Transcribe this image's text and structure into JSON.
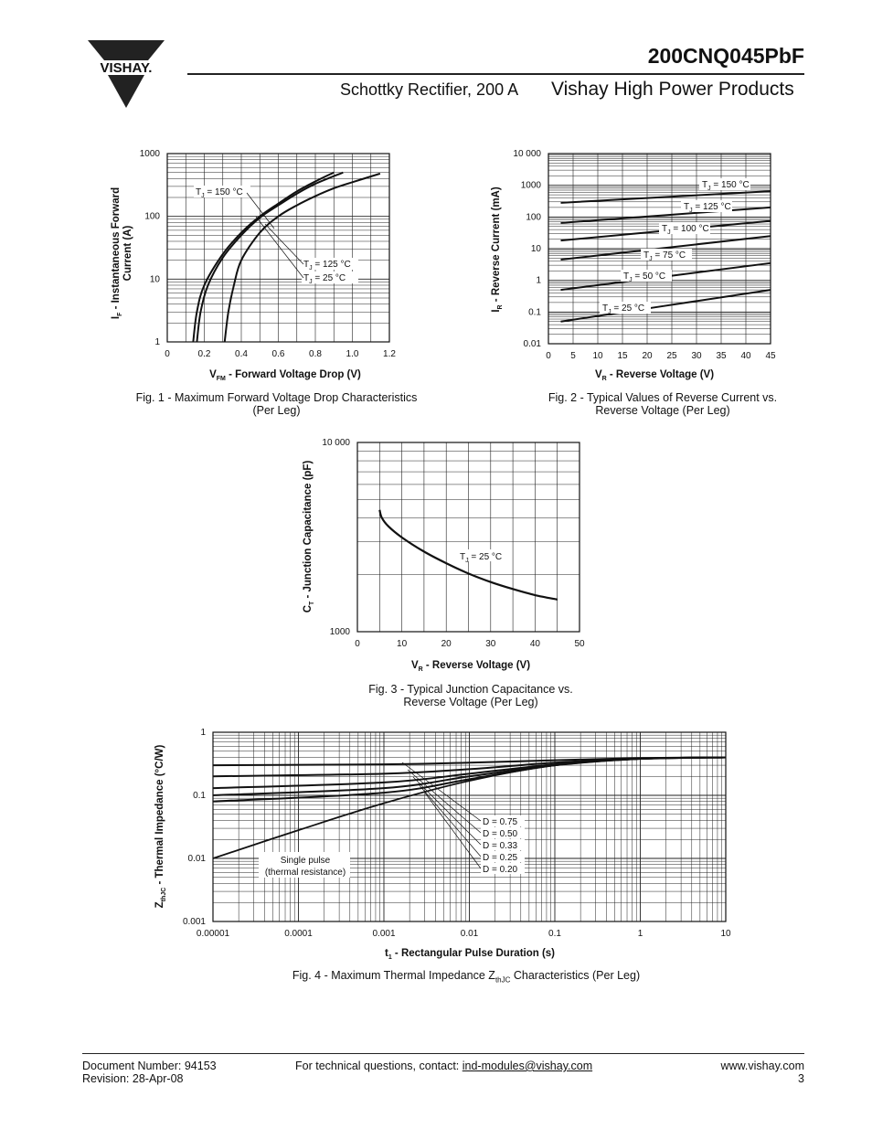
{
  "header": {
    "brand": "VISHAY.",
    "part_number": "200CNQ045PbF",
    "subtitle": "Schottky Rectifier, 200 A",
    "division": "Vishay High Power Products"
  },
  "figures": [
    {
      "caption_line1": "Fig. 1 - Maximum Forward Voltage Drop Characteristics",
      "caption_line2": "(Per Leg)"
    },
    {
      "caption_line1": "Fig. 2 - Typical Values of Reverse Current vs.",
      "caption_line2": "Reverse Voltage (Per Leg)"
    },
    {
      "caption_line1": "Fig. 3 - Typical Junction Capacitance vs.",
      "caption_line2": "Reverse Voltage (Per Leg)"
    },
    {
      "caption_prefix": "Fig. 4 - Maximum Thermal Impedance Z",
      "caption_sub": "thJC",
      "caption_suffix": " Characteristics (Per Leg)"
    }
  ],
  "footer": {
    "doc_number": "Document Number: 94153",
    "revision": "Revision: 28-Apr-08",
    "contact_prefix": "For technical questions, contact: ",
    "contact_email": "ind-modules@vishay.com",
    "website": "www.vishay.com",
    "page": "3"
  },
  "chart_data": [
    {
      "type": "line",
      "xlabel_main": "V",
      "xlabel_sub": "FM",
      "xlabel_rest": " - Forward Voltage Drop (V)",
      "ylabel_main": "I",
      "ylabel_sub": "F",
      "ylabel_rest": " - Instantaneous Forward",
      "ylabel_line2": "Current (A)",
      "x_ticks": [
        "0",
        "0.2",
        "0.4",
        "0.6",
        "0.8",
        "1.0",
        "1.2"
      ],
      "y_ticks": [
        "1",
        "10",
        "100",
        "1000"
      ],
      "xlim": [
        0,
        1.2
      ],
      "ylim": [
        1,
        1000
      ],
      "yscale": "log",
      "grid": true,
      "series": [
        {
          "name": "TJ = 150 °C",
          "label_main": "T",
          "label_sub": "J",
          "label_rest": " = 150 °C",
          "x": [
            0.14,
            0.16,
            0.2,
            0.3,
            0.4,
            0.5,
            0.6,
            0.7,
            0.8,
            0.9
          ],
          "y": [
            1,
            3,
            8,
            25,
            55,
            100,
            160,
            250,
            360,
            500
          ]
        },
        {
          "name": "TJ = 125 °C",
          "label_main": "T",
          "label_sub": "J",
          "label_rest": " = 125 °C",
          "x": [
            0.16,
            0.18,
            0.22,
            0.3,
            0.4,
            0.5,
            0.6,
            0.7,
            0.8,
            0.95
          ],
          "y": [
            1,
            3,
            8,
            22,
            50,
            95,
            150,
            230,
            330,
            500
          ]
        },
        {
          "name": "TJ = 25 °C",
          "label_main": "T",
          "label_sub": "J",
          "label_rest": " =   25 °C",
          "x": [
            0.31,
            0.33,
            0.36,
            0.4,
            0.5,
            0.6,
            0.7,
            0.8,
            0.9,
            1.0,
            1.15
          ],
          "y": [
            1,
            3,
            8,
            20,
            55,
            100,
            150,
            210,
            280,
            350,
            480
          ]
        }
      ]
    },
    {
      "type": "line",
      "xlabel_main": "V",
      "xlabel_sub": "R",
      "xlabel_rest": " - Reverse Voltage (V)",
      "ylabel_main": "I",
      "ylabel_sub": "R",
      "ylabel_rest": " - Reverse Current (mA)",
      "x_ticks": [
        "0",
        "5",
        "10",
        "15",
        "20",
        "25",
        "30",
        "35",
        "40",
        "45"
      ],
      "y_ticks": [
        "0.01",
        "0.1",
        "1",
        "10",
        "100",
        "1000",
        "10 000"
      ],
      "xlim": [
        0,
        45
      ],
      "ylim": [
        0.01,
        10000
      ],
      "yscale": "log",
      "grid": true,
      "series": [
        {
          "name": "TJ = 150 °C",
          "label_main": "T",
          "label_sub": "J",
          "label_rest": " = 150 °C",
          "x": [
            2.5,
            45
          ],
          "y": [
            280,
            650
          ]
        },
        {
          "name": "TJ = 125 °C",
          "label_main": "T",
          "label_sub": "J",
          "label_rest": " = 125 °C",
          "x": [
            2.5,
            45
          ],
          "y": [
            65,
            200
          ]
        },
        {
          "name": "TJ = 100 °C",
          "label_main": "T",
          "label_sub": "J",
          "label_rest": " = 100 °C",
          "x": [
            2.5,
            45
          ],
          "y": [
            18,
            75
          ]
        },
        {
          "name": "TJ = 75 °C",
          "label_main": "T",
          "label_sub": "J",
          "label_rest": " = 75 °C",
          "x": [
            2.5,
            45
          ],
          "y": [
            4.5,
            25
          ]
        },
        {
          "name": "TJ = 50 °C",
          "label_main": "T",
          "label_sub": "J",
          "label_rest": " = 50 °C",
          "x": [
            2.5,
            45
          ],
          "y": [
            0.5,
            3.5
          ]
        },
        {
          "name": "TJ = 25 °C",
          "label_main": "T",
          "label_sub": "J",
          "label_rest": " = 25 °C",
          "x": [
            2.5,
            45
          ],
          "y": [
            0.05,
            0.5
          ]
        }
      ]
    },
    {
      "type": "line",
      "xlabel_main": "V",
      "xlabel_sub": "R",
      "xlabel_rest": " - Reverse Voltage (V)",
      "ylabel_main": "C",
      "ylabel_sub": "T",
      "ylabel_rest": " - Junction Capacitance (pF)",
      "x_ticks": [
        "0",
        "10",
        "20",
        "30",
        "40",
        "50"
      ],
      "y_ticks": [
        "1000",
        "10 000"
      ],
      "xlim": [
        0,
        50
      ],
      "ylim": [
        1000,
        10000
      ],
      "yscale": "log",
      "grid": true,
      "series": [
        {
          "name": "TJ = 25 °C",
          "label_main": "T",
          "label_sub": "J",
          "label_rest": " = 25 °C",
          "x": [
            5,
            5.5,
            7,
            10,
            15,
            20,
            25,
            30,
            35,
            40,
            45
          ],
          "y": [
            4400,
            4000,
            3600,
            3150,
            2650,
            2300,
            2030,
            1830,
            1680,
            1560,
            1480
          ]
        }
      ]
    },
    {
      "type": "line",
      "xlabel_main": "t",
      "xlabel_sub": "1",
      "xlabel_rest": " - Rectangular Pulse Duration (s)",
      "ylabel_main": "Z",
      "ylabel_sub": "thJC",
      "ylabel_rest": " - Thermal Impedance (°C/W)",
      "x_ticks": [
        "0.00001",
        "0.0001",
        "0.001",
        "0.01",
        "0.1",
        "1",
        "10"
      ],
      "y_ticks": [
        "0.001",
        "0.01",
        "0.1",
        "1"
      ],
      "xlim": [
        1e-05,
        10
      ],
      "ylim": [
        0.001,
        1
      ],
      "xscale": "log",
      "yscale": "log",
      "grid": true,
      "series": [
        {
          "name": "D = 0.75",
          "x": [
            1e-05,
            0.001,
            0.01,
            0.1,
            1,
            10
          ],
          "y": [
            0.3,
            0.31,
            0.33,
            0.36,
            0.39,
            0.4
          ]
        },
        {
          "name": "D = 0.50",
          "x": [
            1e-05,
            0.001,
            0.01,
            0.1,
            1,
            10
          ],
          "y": [
            0.2,
            0.22,
            0.26,
            0.33,
            0.38,
            0.4
          ]
        },
        {
          "name": "D = 0.33",
          "x": [
            1e-05,
            0.001,
            0.01,
            0.1,
            1,
            10
          ],
          "y": [
            0.13,
            0.16,
            0.22,
            0.31,
            0.38,
            0.4
          ]
        },
        {
          "name": "D = 0.25",
          "x": [
            1e-05,
            0.001,
            0.01,
            0.1,
            1,
            10
          ],
          "y": [
            0.1,
            0.13,
            0.2,
            0.3,
            0.38,
            0.4
          ]
        },
        {
          "name": "D = 0.20",
          "x": [
            1e-05,
            0.001,
            0.01,
            0.1,
            1,
            10
          ],
          "y": [
            0.08,
            0.11,
            0.18,
            0.3,
            0.38,
            0.4
          ]
        },
        {
          "name": "Single pulse (thermal resistance)",
          "label_line1": "Single pulse",
          "label_line2": "(thermal resistance)",
          "x": [
            1e-05,
            0.0001,
            0.001,
            0.01,
            0.1,
            1,
            10
          ],
          "y": [
            0.01,
            0.028,
            0.075,
            0.17,
            0.3,
            0.38,
            0.4
          ]
        }
      ]
    }
  ]
}
